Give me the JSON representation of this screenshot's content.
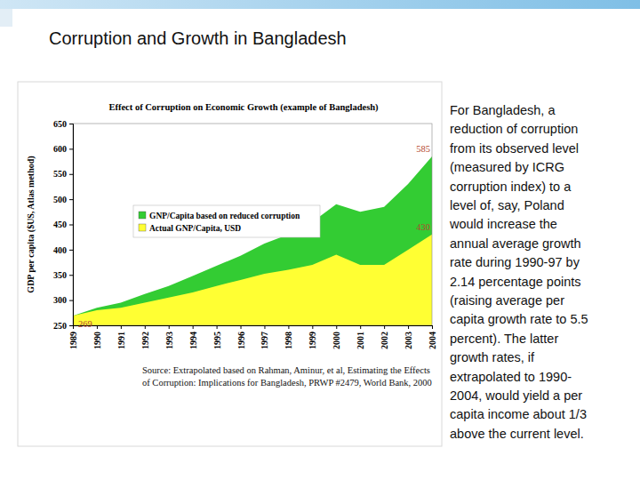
{
  "slide_title": "Corruption and Growth in Bangladesh",
  "body_lines": [
    "For Bangladesh, a",
    "reduction of corruption",
    "from its observed level",
    "(measured by ICRG",
    "corruption index) to a",
    "level of, say, Poland",
    "would increase the",
    "annual average growth",
    "rate during 1990-97 by",
    "2.14 percentage points",
    "(raising average per",
    "capita growth rate to 5.5",
    "percent). The latter",
    "growth rates, if",
    "extrapolated to 1990-",
    "2004, would yield a per",
    "capita income about 1/3",
    "above the current level."
  ],
  "source_lines": [
    "Source: Extrapolated based on Rahman, Aminur, et al, Estimating the Effects",
    "of Corruption:  Implications for Bangladesh, PRWP #2479, World Bank, 2000"
  ],
  "chart_data": {
    "type": "area",
    "title": "Effect of Corruption on Economic Growth (example of Bangladesh)",
    "y_label": "GDP per capita ($US, Atlas method)",
    "x": [
      1989,
      1990,
      1991,
      1992,
      1993,
      1994,
      1995,
      1996,
      1997,
      1998,
      1999,
      2000,
      2001,
      2002,
      2003,
      2004
    ],
    "series": [
      {
        "name": "GNP/Capita based on reduced corruption",
        "color": "#33cc33",
        "values": [
          269,
          285,
          295,
          312,
          328,
          348,
          368,
          388,
          412,
          430,
          455,
          490,
          475,
          485,
          530,
          585
        ]
      },
      {
        "name": "Actual GNP/Capita, USD",
        "color": "#ffff33",
        "values": [
          269,
          280,
          285,
          295,
          305,
          315,
          328,
          340,
          352,
          360,
          370,
          390,
          370,
          370,
          400,
          430
        ]
      }
    ],
    "xlim": [
      1989,
      2004
    ],
    "xticks": [
      1989,
      1990,
      1991,
      1992,
      1993,
      1994,
      1995,
      1996,
      1997,
      1998,
      1999,
      2000,
      2001,
      2002,
      2003,
      2004
    ],
    "ylim": [
      250,
      650
    ],
    "yticks": [
      250,
      300,
      350,
      400,
      450,
      500,
      550,
      600,
      650
    ],
    "grid": false,
    "legend": "upper left",
    "annotations": [
      {
        "label": "585",
        "x": 2004,
        "y": 585
      },
      {
        "label": "430",
        "x": 2004,
        "y": 430
      },
      {
        "label": "269",
        "x": 1989,
        "y": 269
      }
    ]
  }
}
